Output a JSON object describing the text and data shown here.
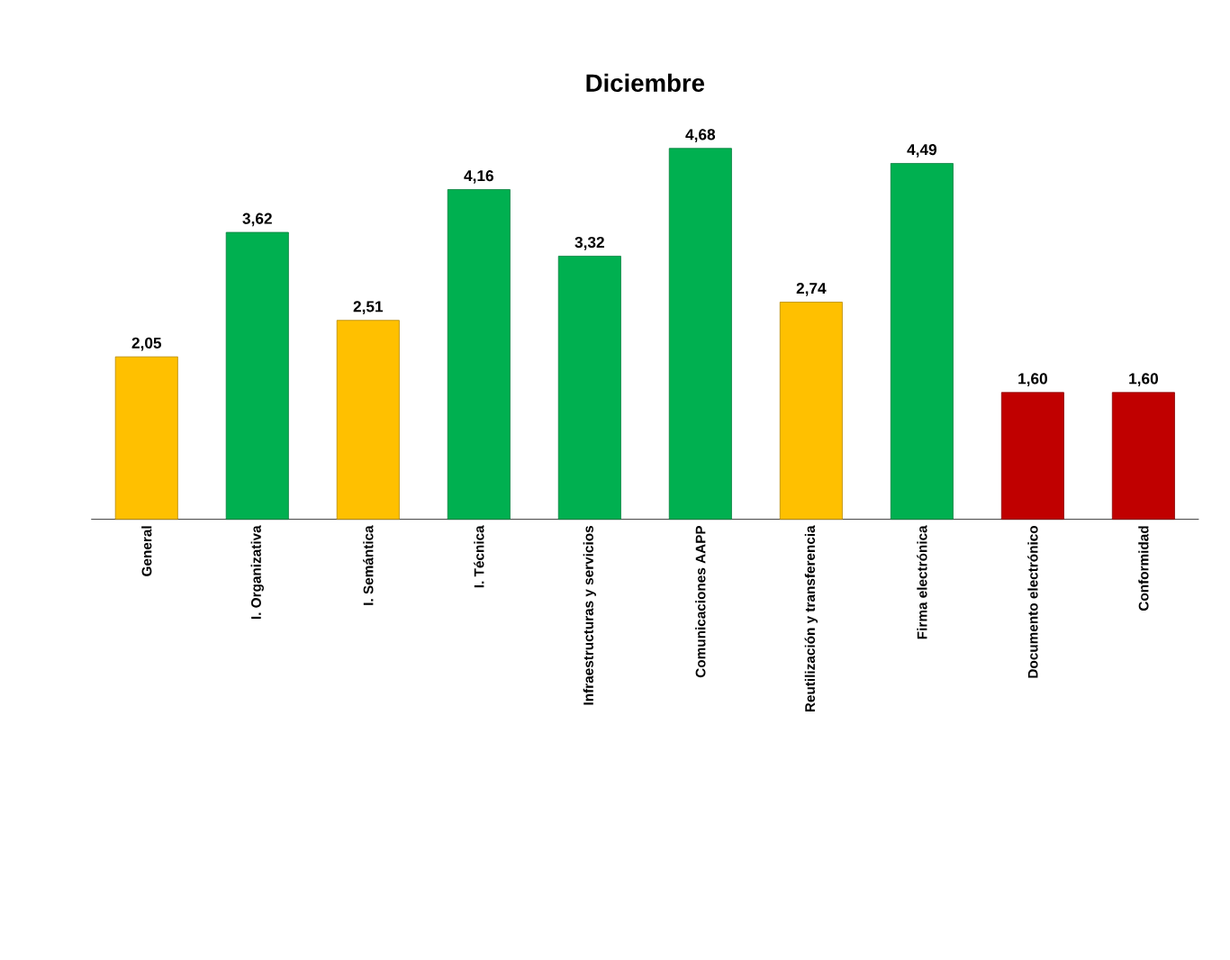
{
  "chart_data": {
    "type": "bar",
    "title": "Diciembre",
    "categories": [
      "General",
      "I. Organizativa",
      "I. Semántica",
      "I. Técnica",
      "Infraestructuras y servicios",
      "Comunicaciones AAPP",
      "Reutilización y transferencia",
      "Firma electrónica",
      "Documento electrónico",
      "Conformidad"
    ],
    "values": [
      2.05,
      3.62,
      2.51,
      4.16,
      3.32,
      4.68,
      2.74,
      4.49,
      1.6,
      1.6
    ],
    "value_labels": [
      "2,05",
      "3,62",
      "2,51",
      "4,16",
      "3,32",
      "4,68",
      "2,74",
      "4,49",
      "1,60",
      "1,60"
    ],
    "colors": [
      "#ffc000",
      "#00b050",
      "#ffc000",
      "#00b050",
      "#00b050",
      "#00b050",
      "#ffc000",
      "#00b050",
      "#c00000",
      "#c00000"
    ]
  }
}
